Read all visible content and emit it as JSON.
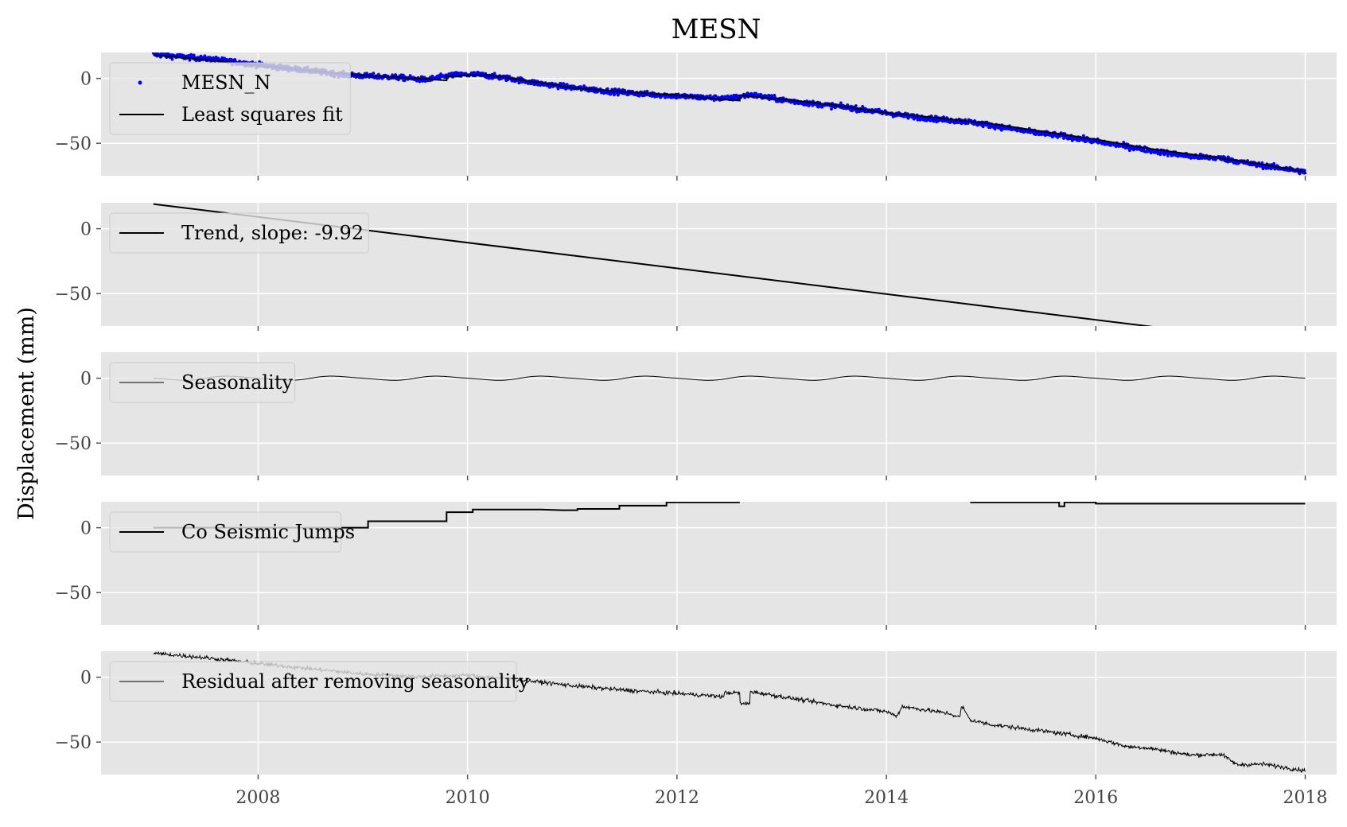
{
  "chart_data": {
    "title": "MESN",
    "ylabel": "Displacement (mm)",
    "xlim": [
      2006.5,
      2018.3
    ],
    "ylim": [
      -75,
      20
    ],
    "xticks": [
      2008,
      2010,
      2012,
      2014,
      2016,
      2018
    ],
    "yticks": [
      0,
      -50
    ],
    "grid": true,
    "colors": {
      "panel_bg": "#e5e5e5",
      "grid": "#ffffff",
      "data_points": "#0000ff",
      "line": "#000000"
    },
    "panels": [
      {
        "legend_placement": "upper-left",
        "series": [
          {
            "name": "MESN_N",
            "type": "scatter",
            "points": [
              [
                2007.0,
                18.5
              ],
              [
                2007.3,
                16.5
              ],
              [
                2007.6,
                14.5
              ],
              [
                2007.9,
                11.5
              ],
              [
                2008.2,
                8.5
              ],
              [
                2008.5,
                6.0
              ],
              [
                2008.8,
                3.0
              ],
              [
                2009.0,
                2.0
              ],
              [
                2009.3,
                1.0
              ],
              [
                2009.6,
                -1.0
              ],
              [
                2009.85,
                2.5
              ],
              [
                2010.1,
                3.0
              ],
              [
                2010.4,
                0.0
              ],
              [
                2010.7,
                -4.0
              ],
              [
                2011.0,
                -7.0
              ],
              [
                2011.3,
                -9.5
              ],
              [
                2011.6,
                -11.5
              ],
              [
                2011.9,
                -13.0
              ],
              [
                2012.2,
                -14.5
              ],
              [
                2012.5,
                -15.5
              ],
              [
                2012.7,
                -12.5
              ],
              [
                2013.0,
                -16.5
              ],
              [
                2013.3,
                -19.5
              ],
              [
                2013.6,
                -22.0
              ],
              [
                2013.9,
                -25.5
              ],
              [
                2014.2,
                -29.0
              ],
              [
                2014.5,
                -31.5
              ],
              [
                2014.8,
                -33.5
              ],
              [
                2015.1,
                -37.5
              ],
              [
                2015.4,
                -41.5
              ],
              [
                2015.7,
                -44.5
              ],
              [
                2016.0,
                -48.5
              ],
              [
                2016.3,
                -52.5
              ],
              [
                2016.6,
                -56.5
              ],
              [
                2016.9,
                -60.0
              ],
              [
                2017.2,
                -61.5
              ],
              [
                2017.5,
                -66.0
              ],
              [
                2017.8,
                -69.5
              ],
              [
                2018.0,
                -72.0
              ]
            ]
          },
          {
            "name": "Least squares fit",
            "type": "line",
            "points": [
              [
                2007.0,
                18.0
              ],
              [
                2007.5,
                14.5
              ],
              [
                2008.0,
                10.0
              ],
              [
                2008.5,
                6.0
              ],
              [
                2008.9,
                3.0
              ],
              [
                2009.0,
                2.5
              ],
              [
                2009.5,
                0.0
              ],
              [
                2009.8,
                -1.5
              ],
              [
                2009.8,
                1.5
              ],
              [
                2010.0,
                2.5
              ],
              [
                2010.2,
                2.5
              ],
              [
                2010.5,
                -1.0
              ],
              [
                2011.0,
                -7.0
              ],
              [
                2011.5,
                -10.5
              ],
              [
                2012.0,
                -13.0
              ],
              [
                2012.5,
                -16.5
              ],
              [
                2012.6,
                -17.0
              ],
              [
                2012.6,
                -13.0
              ],
              [
                2013.0,
                -16.0
              ],
              [
                2013.5,
                -20.5
              ],
              [
                2014.0,
                -26.5
              ],
              [
                2014.5,
                -30.5
              ],
              [
                2015.0,
                -35.0
              ],
              [
                2015.5,
                -41.0
              ],
              [
                2016.0,
                -47.0
              ],
              [
                2016.5,
                -54.0
              ],
              [
                2017.0,
                -59.5
              ],
              [
                2017.5,
                -65.0
              ],
              [
                2018.0,
                -72.0
              ]
            ]
          }
        ]
      },
      {
        "legend_placement": "upper-left",
        "series": [
          {
            "name": "Trend, slope: -9.92",
            "type": "line",
            "points": [
              [
                2007.0,
                19.0
              ],
              [
                2018.0,
                -90.0
              ]
            ]
          }
        ]
      },
      {
        "legend_placement": "upper-left",
        "series": [
          {
            "name": "Seasonality",
            "type": "sine",
            "x_range": [
              2007.0,
              2018.0
            ],
            "amplitude": 1.5,
            "period_years": 1.0,
            "phase_peak": 2008.75
          }
        ]
      },
      {
        "legend_placement": "upper-left",
        "series": [
          {
            "name": "Co Seismic Jumps",
            "type": "line",
            "points": [
              [
                2007.0,
                0.0
              ],
              [
                2009.05,
                0.0
              ],
              [
                2009.05,
                5.0
              ],
              [
                2009.8,
                5.0
              ],
              [
                2009.8,
                12.0
              ],
              [
                2010.05,
                12.0
              ],
              [
                2010.05,
                14.0
              ],
              [
                2010.7,
                14.0
              ],
              [
                2010.9,
                13.5
              ],
              [
                2011.05,
                13.5
              ],
              [
                2011.05,
                14.5
              ],
              [
                2011.45,
                14.5
              ],
              [
                2011.45,
                17.0
              ],
              [
                2011.9,
                17.0
              ],
              [
                2011.9,
                19.5
              ],
              [
                2012.6,
                19.5
              ],
              [
                null,
                null
              ],
              [
                2014.8,
                19.5
              ],
              [
                2015.65,
                19.5
              ],
              [
                2015.65,
                16.5
              ],
              [
                2015.7,
                16.5
              ],
              [
                2015.7,
                19.5
              ],
              [
                2016.0,
                19.5
              ],
              [
                2016.0,
                18.5
              ],
              [
                2018.0,
                18.5
              ]
            ]
          }
        ]
      },
      {
        "legend_placement": "upper-left",
        "series": [
          {
            "name": "Residual after removing seasonality",
            "type": "line",
            "points": [
              [
                2007.0,
                18.5
              ],
              [
                2007.5,
                15.0
              ],
              [
                2008.0,
                10.5
              ],
              [
                2008.5,
                6.5
              ],
              [
                2009.0,
                2.5
              ],
              [
                2009.5,
                0.5
              ],
              [
                2010.0,
                1.5
              ],
              [
                2010.5,
                -2.0
              ],
              [
                2011.0,
                -6.5
              ],
              [
                2011.5,
                -10.0
              ],
              [
                2012.0,
                -12.5
              ],
              [
                2012.45,
                -15.0
              ],
              [
                2012.45,
                -12.0
              ],
              [
                2012.6,
                -12.0
              ],
              [
                2012.6,
                -20.5
              ],
              [
                2012.7,
                -20.5
              ],
              [
                2012.7,
                -11.0
              ],
              [
                2013.0,
                -15.0
              ],
              [
                2013.5,
                -21.5
              ],
              [
                2014.0,
                -26.5
              ],
              [
                2014.1,
                -30.0
              ],
              [
                2014.15,
                -22.5
              ],
              [
                2014.6,
                -28.0
              ],
              [
                2014.7,
                -31.0
              ],
              [
                2014.72,
                -22.0
              ],
              [
                2014.8,
                -33.0
              ],
              [
                2015.0,
                -36.5
              ],
              [
                2015.5,
                -41.5
              ],
              [
                2016.0,
                -47.0
              ],
              [
                2016.3,
                -53.5
              ],
              [
                2016.5,
                -54.5
              ],
              [
                2016.9,
                -60.0
              ],
              [
                2017.2,
                -59.5
              ],
              [
                2017.35,
                -67.5
              ],
              [
                2017.6,
                -67.0
              ],
              [
                2018.0,
                -72.0
              ]
            ]
          }
        ]
      }
    ]
  }
}
